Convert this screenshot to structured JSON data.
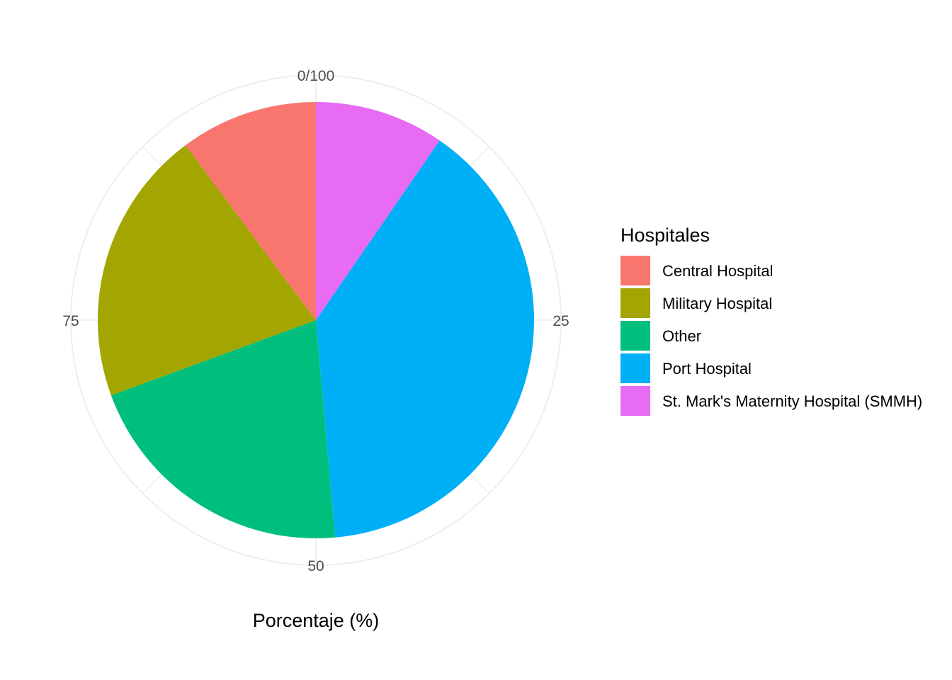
{
  "chart_data": {
    "type": "pie",
    "title": "",
    "xlabel": "Porcentaje (%)",
    "legend_title": "Hospitales",
    "legend_position": "right",
    "grid": true,
    "theta_range": [
      0,
      100
    ],
    "theta_ticks": [
      "0/100",
      "25",
      "50",
      "75"
    ],
    "categories": [
      "Central Hospital",
      "Military Hospital",
      "Other",
      "Port Hospital",
      "St. Mark's Maternity Hospital (SMMH)"
    ],
    "values": [
      10.2,
      20.4,
      20.8,
      39.0,
      9.6
    ],
    "colors": [
      "#F8766D",
      "#A3A500",
      "#00BF7D",
      "#00B0F6",
      "#E76BF3"
    ]
  }
}
